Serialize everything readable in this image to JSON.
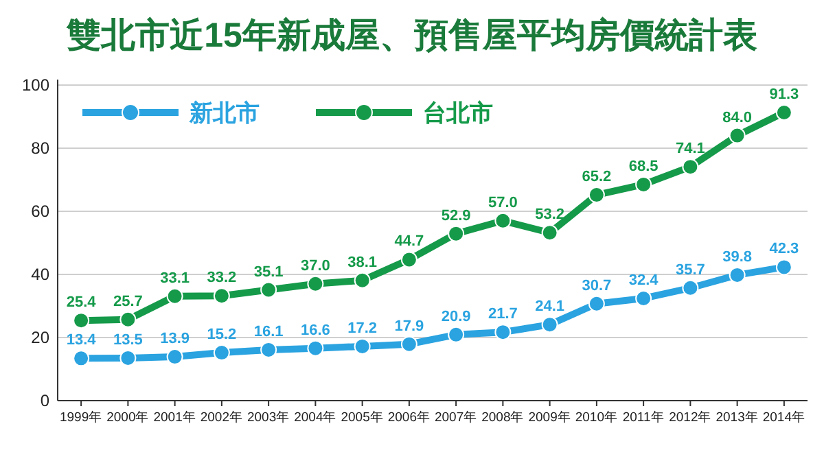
{
  "chart_data": {
    "type": "line",
    "title": "雙北市近15年新成屋、預售屋平均房價統計表",
    "categories": [
      "1999年",
      "2000年",
      "2001年",
      "2002年",
      "2003年",
      "2004年",
      "2005年",
      "2006年",
      "2007年",
      "2008年",
      "2009年",
      "2010年",
      "2011年",
      "2012年",
      "2013年",
      "2014年"
    ],
    "series": [
      {
        "name": "新北市",
        "color": "#2aa3e0",
        "values": [
          13.4,
          13.5,
          13.9,
          15.2,
          16.1,
          16.6,
          17.2,
          17.9,
          20.9,
          21.7,
          24.1,
          30.7,
          32.4,
          35.7,
          39.8,
          42.3
        ],
        "value_labels": [
          "13.4",
          "13.5",
          "13.9",
          "15.2",
          "16.1",
          "16.6",
          "17.2",
          "17.9",
          "20.9",
          "21.7",
          "24.1",
          "30.7",
          "32.4",
          "35.7",
          "39.8",
          "42.3"
        ]
      },
      {
        "name": "台北市",
        "color": "#159a4a",
        "values": [
          25.4,
          25.7,
          33.1,
          33.2,
          35.1,
          37.0,
          38.1,
          44.7,
          52.9,
          57.0,
          53.2,
          65.2,
          68.5,
          74.1,
          84.0,
          91.3
        ],
        "value_labels": [
          "25.4",
          "25.7",
          "33.1",
          "33.2",
          "35.1",
          "37.0",
          "38.1",
          "44.7",
          "52.9",
          "57.0",
          "53.2",
          "65.2",
          "68.5",
          "74.1",
          "84.0",
          "91.3"
        ]
      }
    ],
    "ylim": [
      0,
      100
    ],
    "yticks": [
      0,
      20,
      40,
      60,
      80,
      100
    ],
    "grid": "y",
    "legend": "top left",
    "marker": "circle",
    "line_style": "solid"
  }
}
